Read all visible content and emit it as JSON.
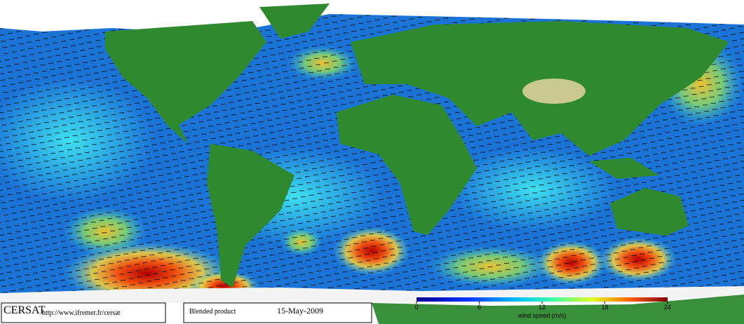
{
  "footer": {
    "logo": "CERSAT",
    "url": "http://www.ifremer.fr/cersat",
    "product": "Blended product",
    "date": "15-May-2009"
  },
  "colorbar": {
    "label": "wind speed (m/s)",
    "lim": [
      0,
      24
    ],
    "ticks": [
      0,
      6,
      12,
      18,
      24
    ]
  }
}
